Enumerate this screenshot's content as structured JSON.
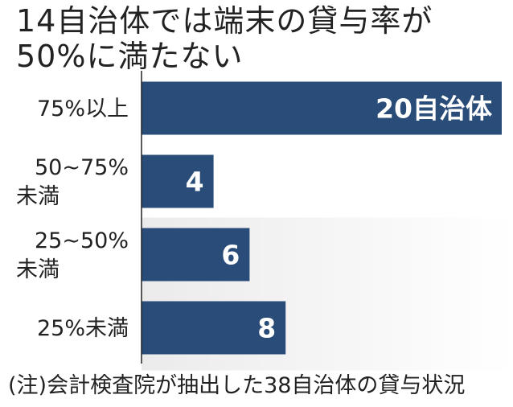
{
  "title": {
    "line1": "14自治体では端末の貸与率が",
    "line2": "50%に満たない"
  },
  "note": "(注)会計検査院が抽出した38自治体の貸与状況",
  "colors": {
    "bar": "#2a4c78",
    "highlight_band_start": "#ebebeb",
    "highlight_band_end": "#ffffff",
    "axis": "#222222",
    "bar_label": "#ffffff"
  },
  "chart_data": {
    "type": "bar",
    "orientation": "horizontal",
    "categories": [
      [
        "75%以上"
      ],
      [
        "50~75%",
        "未満"
      ],
      [
        "25~50%",
        "未満"
      ],
      [
        "25%未満"
      ]
    ],
    "values": [
      20,
      4,
      6,
      8
    ],
    "data_labels": [
      "20自治体",
      "4",
      "6",
      "8"
    ],
    "xlim": [
      0,
      20
    ],
    "highlighted_categories": [
      2,
      3
    ],
    "grid": false,
    "legend": "none"
  }
}
